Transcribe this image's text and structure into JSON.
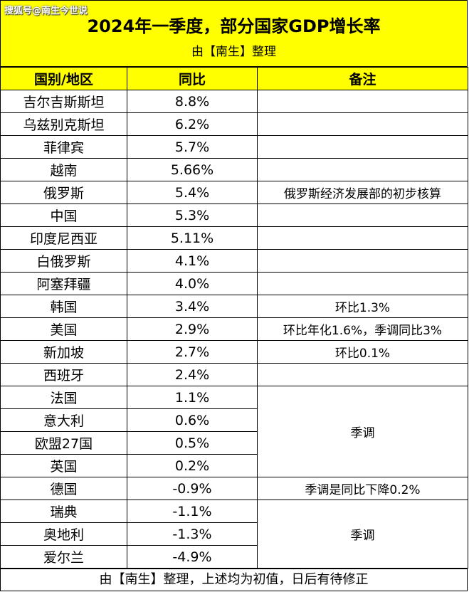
{
  "watermark": "搜狐号@南生今世说",
  "header": {
    "title": "2024年一季度，部分国家GDP增长率",
    "subtitle": "由【南生】整理"
  },
  "columns": [
    "国别/地区",
    "同比",
    "备注"
  ],
  "rows": [
    {
      "country": "吉尔吉斯斯坦",
      "yoy": "8.8%"
    },
    {
      "country": "乌兹别克斯坦",
      "yoy": "6.2%"
    },
    {
      "country": "菲律宾",
      "yoy": "5.7%"
    },
    {
      "country": "越南",
      "yoy": "5.66%"
    },
    {
      "country": "俄罗斯",
      "yoy": "5.4%"
    },
    {
      "country": "中国",
      "yoy": "5.3%"
    },
    {
      "country": "印度尼西亚",
      "yoy": "5.11%"
    },
    {
      "country": "白俄罗斯",
      "yoy": "4.1%"
    },
    {
      "country": "阿塞拜疆",
      "yoy": "4.0%"
    },
    {
      "country": "韩国",
      "yoy": "3.4%"
    },
    {
      "country": "美国",
      "yoy": "2.9%"
    },
    {
      "country": "新加坡",
      "yoy": "2.7%"
    },
    {
      "country": "西班牙",
      "yoy": "2.4%"
    },
    {
      "country": "法国",
      "yoy": "1.1%"
    },
    {
      "country": "意大利",
      "yoy": "0.6%"
    },
    {
      "country": "欧盟27国",
      "yoy": "0.5%"
    },
    {
      "country": "英国",
      "yoy": "0.2%"
    },
    {
      "country": "德国",
      "yoy": "-0.9%"
    },
    {
      "country": "瑞典",
      "yoy": "-1.1%"
    },
    {
      "country": "奥地利",
      "yoy": "-1.3%"
    },
    {
      "country": "爱尔兰",
      "yoy": "-4.9%"
    }
  ],
  "notes": {
    "russia": "俄罗斯经济发展部的初步核算",
    "korea": "环比1.3%",
    "usa": "环比年化1.6%，季调同比3%",
    "singapore": "环比0.1%",
    "group_eu": "季调",
    "germany": "季调是同比下降0.2%",
    "group_north": "季调"
  },
  "footer": "由【南生】整理，上述均为初值，日后有待修正"
}
